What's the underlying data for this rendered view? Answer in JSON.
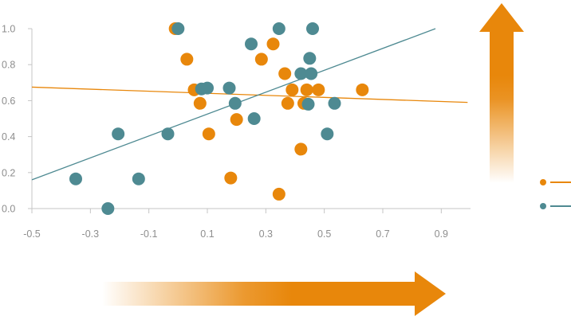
{
  "chart_data": {
    "type": "scatter",
    "title": "",
    "xlabel": "",
    "ylabel": "",
    "xlim": [
      -0.5,
      1.0
    ],
    "ylim": [
      0,
      1.0
    ],
    "x_ticks": [
      "-0.5",
      "-0.3",
      "-0.1",
      "0.1",
      "0.3",
      "0.5",
      "0.7",
      "0.9"
    ],
    "y_ticks": [
      "0.0",
      "0.2",
      "0.4",
      "0.6",
      "0.8",
      "1.0"
    ],
    "grid": false,
    "legend": "right, no labels",
    "series": [
      {
        "color": "#e8870b",
        "points": [
          [
            -0.01,
            1.0
          ],
          [
            0.03,
            0.83
          ],
          [
            0.055,
            0.66
          ],
          [
            0.075,
            0.585
          ],
          [
            0.105,
            0.415
          ],
          [
            0.18,
            0.17
          ],
          [
            0.2,
            0.495
          ],
          [
            0.285,
            0.83
          ],
          [
            0.325,
            0.915
          ],
          [
            0.345,
            0.08
          ],
          [
            0.365,
            0.75
          ],
          [
            0.375,
            0.585
          ],
          [
            0.39,
            0.66
          ],
          [
            0.42,
            0.33
          ],
          [
            0.43,
            0.585
          ],
          [
            0.44,
            0.66
          ],
          [
            0.48,
            0.66
          ],
          [
            0.63,
            0.66
          ]
        ],
        "trend": [
          [
            -0.5,
            0.675
          ],
          [
            0.99,
            0.59
          ]
        ]
      },
      {
        "color": "#4e8a92",
        "points": [
          [
            -0.35,
            0.165
          ],
          [
            -0.24,
            0.0
          ],
          [
            -0.205,
            0.415
          ],
          [
            -0.135,
            0.165
          ],
          [
            -0.035,
            0.415
          ],
          [
            0.0,
            1.0
          ],
          [
            0.08,
            0.665
          ],
          [
            0.1,
            0.67
          ],
          [
            0.175,
            0.67
          ],
          [
            0.195,
            0.585
          ],
          [
            0.25,
            0.915
          ],
          [
            0.26,
            0.5
          ],
          [
            0.345,
            1.0
          ],
          [
            0.42,
            0.75
          ],
          [
            0.445,
            0.58
          ],
          [
            0.45,
            0.835
          ],
          [
            0.455,
            0.75
          ],
          [
            0.46,
            1.0
          ],
          [
            0.51,
            0.415
          ],
          [
            0.535,
            0.585
          ]
        ],
        "trend": [
          [
            -0.5,
            0.16
          ],
          [
            0.88,
            1.0
          ]
        ]
      }
    ]
  },
  "decor": {
    "horizontal_arrow_color": "#e8870b",
    "vertical_arrow_color": "#e8870b"
  }
}
